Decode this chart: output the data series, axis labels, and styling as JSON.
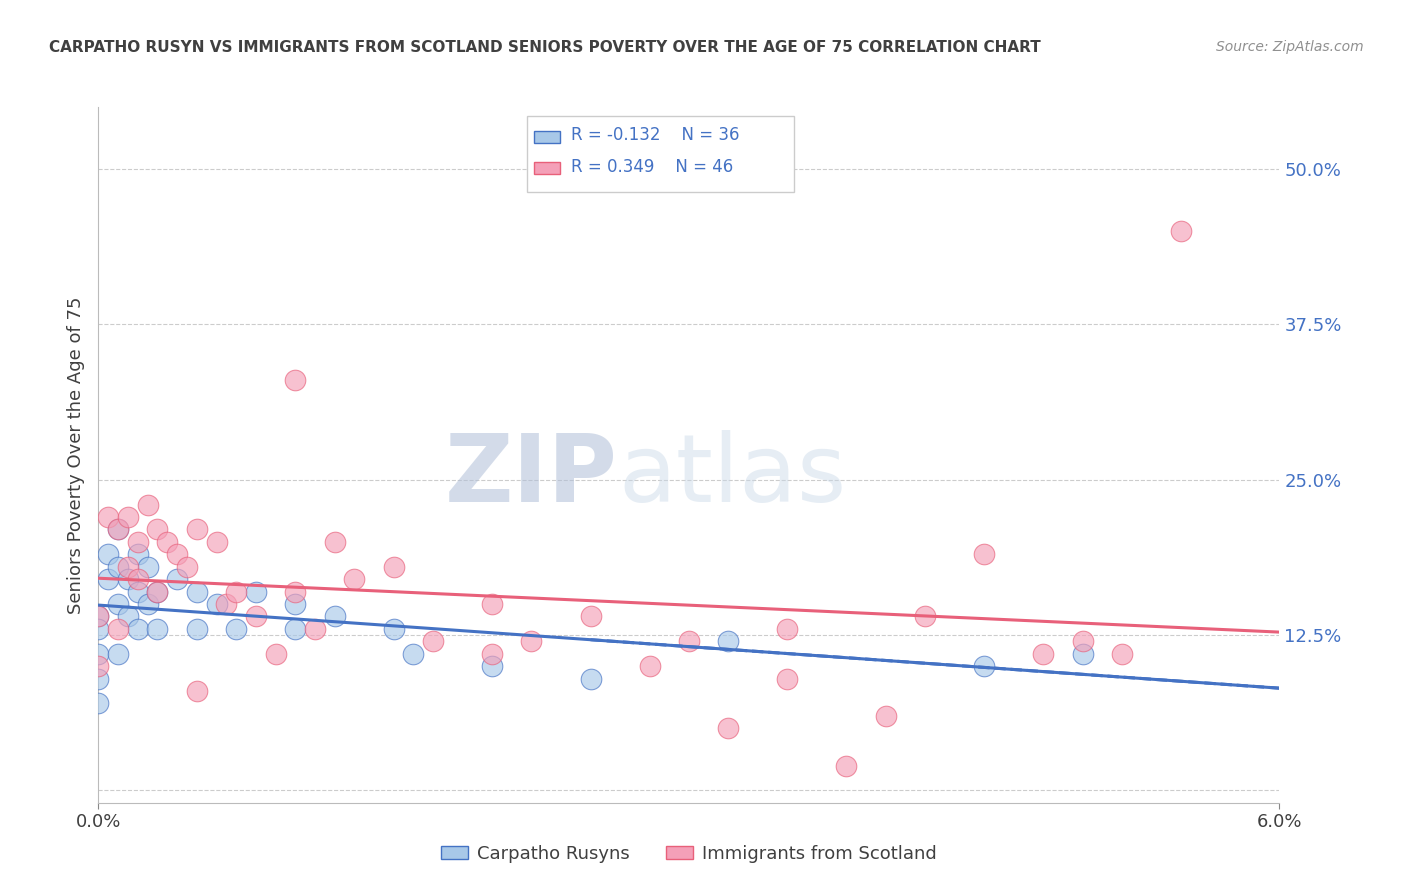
{
  "title": "CARPATHO RUSYN VS IMMIGRANTS FROM SCOTLAND SENIORS POVERTY OVER THE AGE OF 75 CORRELATION CHART",
  "source": "Source: ZipAtlas.com",
  "ylabel": "Seniors Poverty Over the Age of 75",
  "xlim": [
    0.0,
    6.0
  ],
  "ylim": [
    -1.0,
    55.0
  ],
  "yticks": [
    0.0,
    12.5,
    25.0,
    37.5,
    50.0
  ],
  "ytick_labels": [
    "",
    "12.5%",
    "25.0%",
    "37.5%",
    "50.0%"
  ],
  "xtick_labels": [
    "0.0%",
    "6.0%"
  ],
  "color_blue": "#a8c8e8",
  "color_pink": "#f4a0b8",
  "line_blue": "#4472c4",
  "line_pink": "#e8607a",
  "background": "#ffffff",
  "grid_color": "#cccccc",
  "title_color": "#404040",
  "source_color": "#909090",
  "label_color": "#4472c4",
  "carpatho_rusyns": {
    "x": [
      0.0,
      0.0,
      0.0,
      0.0,
      0.0,
      0.05,
      0.05,
      0.1,
      0.1,
      0.1,
      0.1,
      0.15,
      0.15,
      0.2,
      0.2,
      0.2,
      0.25,
      0.25,
      0.3,
      0.3,
      0.4,
      0.5,
      0.5,
      0.6,
      0.7,
      0.8,
      1.0,
      1.0,
      1.2,
      1.5,
      1.6,
      2.0,
      2.5,
      3.2,
      4.5,
      5.0
    ],
    "y": [
      14.0,
      13.0,
      11.0,
      9.0,
      7.0,
      19.0,
      17.0,
      21.0,
      18.0,
      15.0,
      11.0,
      17.0,
      14.0,
      19.0,
      16.0,
      13.0,
      18.0,
      15.0,
      16.0,
      13.0,
      17.0,
      16.0,
      13.0,
      15.0,
      13.0,
      16.0,
      15.0,
      13.0,
      14.0,
      13.0,
      11.0,
      10.0,
      9.0,
      12.0,
      10.0,
      11.0
    ]
  },
  "scotland_immigrants": {
    "x": [
      0.0,
      0.0,
      0.05,
      0.1,
      0.1,
      0.15,
      0.15,
      0.2,
      0.2,
      0.25,
      0.3,
      0.3,
      0.35,
      0.4,
      0.45,
      0.5,
      0.5,
      0.6,
      0.65,
      0.7,
      0.8,
      0.9,
      1.0,
      1.0,
      1.1,
      1.2,
      1.3,
      1.5,
      1.7,
      2.0,
      2.0,
      2.2,
      2.5,
      2.8,
      3.0,
      3.2,
      3.5,
      3.5,
      3.8,
      4.0,
      4.2,
      4.5,
      4.8,
      5.0,
      5.2,
      5.5
    ],
    "y": [
      14.0,
      10.0,
      22.0,
      21.0,
      13.0,
      22.0,
      18.0,
      20.0,
      17.0,
      23.0,
      21.0,
      16.0,
      20.0,
      19.0,
      18.0,
      21.0,
      8.0,
      20.0,
      15.0,
      16.0,
      14.0,
      11.0,
      33.0,
      16.0,
      13.0,
      20.0,
      17.0,
      18.0,
      12.0,
      15.0,
      11.0,
      12.0,
      14.0,
      10.0,
      12.0,
      5.0,
      13.0,
      9.0,
      2.0,
      6.0,
      14.0,
      19.0,
      11.0,
      12.0,
      11.0,
      45.0
    ]
  },
  "watermark_zip": "ZIP",
  "watermark_atlas": "atlas",
  "bottom_label1": "Carpatho Rusyns",
  "bottom_label2": "Immigrants from Scotland"
}
